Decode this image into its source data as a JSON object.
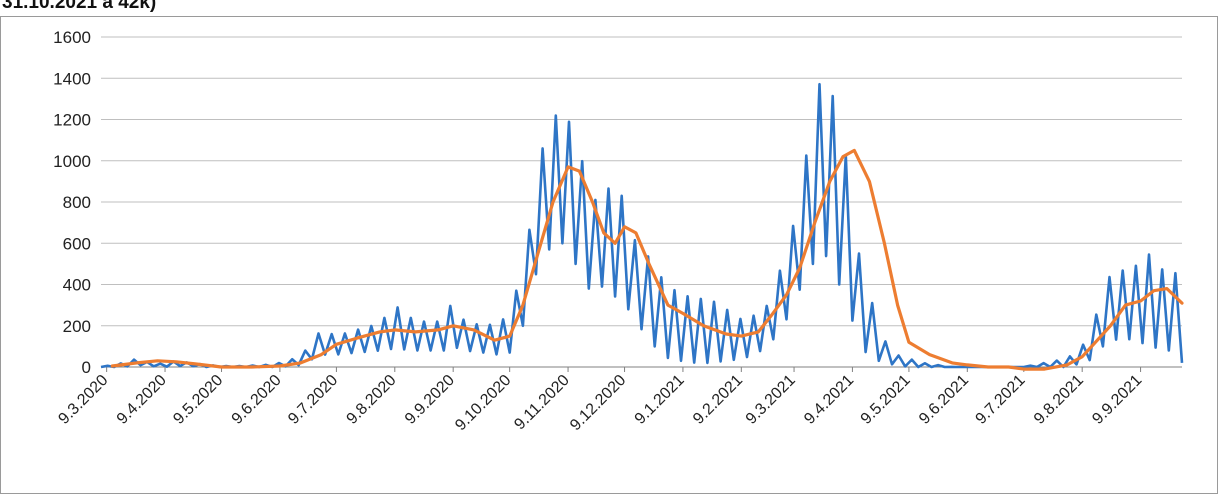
{
  "header": {
    "partial_caption": "31.10.2021 а 42k)"
  },
  "colors": {
    "daily": "#2e75c6",
    "average": "#ed7d31",
    "grid": "#bfbfbf",
    "axis": "#808080"
  },
  "chart_data": {
    "type": "line",
    "title": "",
    "xlabel": "",
    "ylabel": "",
    "ylim": [
      0,
      1600
    ],
    "xlim": [
      "2020-03-06",
      "2021-10-01"
    ],
    "grid": true,
    "legend": "none",
    "y_ticks": [
      "0",
      "200",
      "400",
      "600",
      "800",
      "1000",
      "1200",
      "1400",
      "1600"
    ],
    "x_ticks": [
      "9.3.2020",
      "9.4.2020",
      "9.5.2020",
      "9.6.2020",
      "9.7.2020",
      "9.8.2020",
      "9.9.2020",
      "9.10.2020",
      "9.11.2020",
      "9.12.2020",
      "9.1.2021",
      "9.2.2021",
      "9.3.2021",
      "9.4.2021",
      "9.5.2021",
      "9.6.2021",
      "9.7.2021",
      "9.8.2021",
      "9.9.2021"
    ],
    "x_tick_dates": [
      "2020-03-09",
      "2020-04-09",
      "2020-05-09",
      "2020-06-09",
      "2020-07-09",
      "2020-08-09",
      "2020-09-09",
      "2020-10-09",
      "2020-11-09",
      "2020-12-09",
      "2021-01-09",
      "2021-02-09",
      "2021-03-09",
      "2021-04-09",
      "2021-05-09",
      "2021-06-09",
      "2021-07-09",
      "2021-08-09",
      "2021-09-09"
    ],
    "series": [
      {
        "style": "daily",
        "x": [
          "2020-03-06",
          "2020-03-18",
          "2020-03-25",
          "2020-04-01",
          "2020-04-08",
          "2020-04-15",
          "2020-04-22",
          "2020-05-01",
          "2020-05-09",
          "2020-05-20",
          "2020-06-01",
          "2020-06-09",
          "2020-06-20",
          "2020-07-01",
          "2020-07-09",
          "2020-07-20",
          "2020-08-01",
          "2020-08-09",
          "2020-08-20",
          "2020-09-01",
          "2020-09-05",
          "2020-09-09",
          "2020-09-15",
          "2020-09-25",
          "2020-10-03",
          "2020-10-09",
          "2020-10-16",
          "2020-10-23",
          "2020-10-28",
          "2020-11-02",
          "2020-11-06",
          "2020-11-09",
          "2020-11-13",
          "2020-11-18",
          "2020-11-23",
          "2020-11-28",
          "2020-12-03",
          "2020-12-09",
          "2020-12-14",
          "2020-12-20",
          "2020-12-27",
          "2021-01-03",
          "2021-01-09",
          "2021-01-16",
          "2021-01-23",
          "2021-02-01",
          "2021-02-09",
          "2021-02-16",
          "2021-02-23",
          "2021-03-02",
          "2021-03-09",
          "2021-03-13",
          "2021-03-17",
          "2021-03-21",
          "2021-03-25",
          "2021-03-29",
          "2021-04-02",
          "2021-04-06",
          "2021-04-10",
          "2021-04-15",
          "2021-04-20",
          "2021-04-26",
          "2021-05-02",
          "2021-05-09",
          "2021-05-16",
          "2021-05-24",
          "2021-06-01",
          "2021-06-09",
          "2021-06-20",
          "2021-07-01",
          "2021-07-09",
          "2021-07-20",
          "2021-08-01",
          "2021-08-09",
          "2021-08-15",
          "2021-08-20",
          "2021-08-25",
          "2021-09-01",
          "2021-09-09",
          "2021-09-14",
          "2021-09-19",
          "2021-09-24",
          "2021-10-01"
        ],
        "peaks": [
          0,
          20,
          40,
          20,
          15,
          30,
          20,
          10,
          5,
          5,
          10,
          20,
          50,
          180,
          150,
          180,
          210,
          300,
          220,
          220,
          240,
          330,
          220,
          200,
          210,
          260,
          480,
          850,
          1150,
          1210,
          1280,
          1200,
          1110,
          950,
          800,
          900,
          830,
          830,
          620,
          560,
          450,
          380,
          350,
          330,
          330,
          280,
          230,
          250,
          300,
          480,
          700,
          900,
          1100,
          1300,
          1490,
          1330,
          1200,
          1000,
          700,
          400,
          300,
          130,
          60,
          40,
          20,
          10,
          0,
          0,
          0,
          0,
          0,
          20,
          40,
          100,
          200,
          380,
          460,
          470,
          500,
          550,
          470,
          480,
          430
        ],
        "troughs": [
          0,
          0,
          10,
          5,
          0,
          5,
          5,
          0,
          0,
          0,
          0,
          0,
          10,
          60,
          60,
          70,
          80,
          90,
          80,
          80,
          80,
          100,
          80,
          70,
          60,
          70,
          200,
          450,
          550,
          600,
          600,
          550,
          500,
          400,
          350,
          400,
          350,
          300,
          250,
          150,
          80,
          30,
          30,
          20,
          20,
          30,
          40,
          60,
          100,
          180,
          300,
          400,
          500,
          500,
          550,
          500,
          400,
          300,
          200,
          80,
          40,
          20,
          10,
          0,
          0,
          0,
          0,
          0,
          0,
          0,
          0,
          0,
          0,
          20,
          40,
          100,
          130,
          140,
          120,
          100,
          90,
          80,
          20
        ]
      },
      {
        "style": "average",
        "x": [
          "2020-03-12",
          "2020-03-25",
          "2020-04-05",
          "2020-04-15",
          "2020-04-25",
          "2020-05-09",
          "2020-05-25",
          "2020-06-09",
          "2020-06-20",
          "2020-07-01",
          "2020-07-09",
          "2020-07-20",
          "2020-08-01",
          "2020-08-09",
          "2020-08-20",
          "2020-09-01",
          "2020-09-09",
          "2020-09-20",
          "2020-10-01",
          "2020-10-09",
          "2020-10-16",
          "2020-10-24",
          "2020-11-01",
          "2020-11-09",
          "2020-11-15",
          "2020-11-22",
          "2020-11-28",
          "2020-12-04",
          "2020-12-09",
          "2020-12-15",
          "2020-12-22",
          "2021-01-01",
          "2021-01-09",
          "2021-01-20",
          "2021-02-01",
          "2021-02-09",
          "2021-02-18",
          "2021-02-25",
          "2021-03-05",
          "2021-03-12",
          "2021-03-20",
          "2021-03-28",
          "2021-04-04",
          "2021-04-10",
          "2021-04-18",
          "2021-04-26",
          "2021-05-03",
          "2021-05-09",
          "2021-05-20",
          "2021-06-01",
          "2021-06-09",
          "2021-06-20",
          "2021-07-01",
          "2021-07-09",
          "2021-07-20",
          "2021-08-01",
          "2021-08-09",
          "2021-08-16",
          "2021-08-24",
          "2021-09-01",
          "2021-09-09",
          "2021-09-16",
          "2021-09-23",
          "2021-10-01"
        ],
        "values": [
          5,
          20,
          30,
          25,
          15,
          0,
          0,
          5,
          20,
          60,
          110,
          140,
          170,
          180,
          170,
          180,
          200,
          180,
          130,
          150,
          300,
          550,
          800,
          970,
          950,
          800,
          650,
          600,
          680,
          650,
          500,
          300,
          260,
          200,
          160,
          150,
          170,
          250,
          350,
          480,
          700,
          900,
          1020,
          1050,
          900,
          600,
          300,
          120,
          60,
          20,
          10,
          0,
          0,
          -10,
          -10,
          10,
          50,
          120,
          200,
          300,
          320,
          370,
          380,
          310
        ]
      }
    ]
  }
}
